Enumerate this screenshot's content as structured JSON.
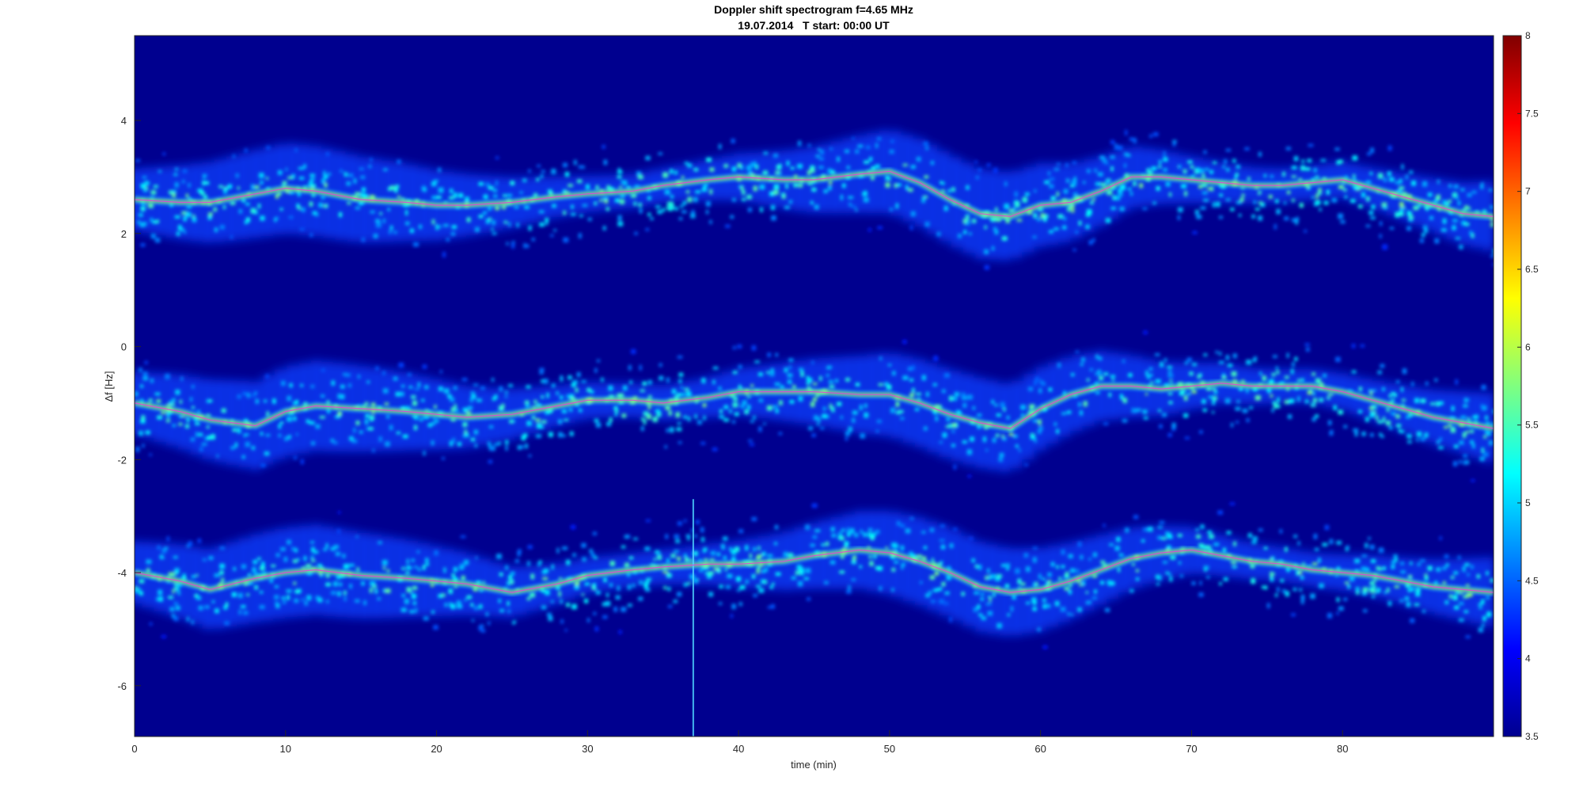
{
  "chart_data": {
    "type": "heatmap",
    "title": "Doppler shift spectrogram f=4.65 MHz",
    "subtitle": "19.07.2014   T start: 00:00 UT",
    "xlabel": "time (min)",
    "ylabel": "Δf [Hz]",
    "xlim": [
      0,
      90
    ],
    "ylim": [
      -6.9,
      5.5
    ],
    "x_ticks": [
      "0",
      "10",
      "20",
      "30",
      "40",
      "50",
      "60",
      "70",
      "80"
    ],
    "y_ticks": [
      "4",
      "2",
      "0",
      "-2",
      "-4",
      "-6"
    ],
    "colorbar": {
      "colormap": "jet",
      "clim": [
        3.5,
        8
      ],
      "ticks": [
        "8",
        "7.5",
        "7",
        "6.5",
        "6",
        "5.5",
        "5",
        "4.5",
        "4",
        "3.5"
      ]
    },
    "background_color": "#00008f",
    "traces": [
      {
        "band": "upper",
        "x": [
          0,
          3,
          5,
          8,
          10,
          12,
          15,
          18,
          20,
          22,
          25,
          28,
          30,
          33,
          35,
          38,
          40,
          43,
          45,
          48,
          50,
          52,
          54,
          56,
          58,
          60,
          62,
          64,
          66,
          68,
          70,
          72,
          74,
          76,
          78,
          80,
          82,
          84,
          86,
          88,
          90
        ],
        "y": [
          2.6,
          2.55,
          2.55,
          2.7,
          2.8,
          2.75,
          2.6,
          2.55,
          2.5,
          2.5,
          2.55,
          2.65,
          2.7,
          2.75,
          2.85,
          2.95,
          3.0,
          2.95,
          2.95,
          3.05,
          3.1,
          2.9,
          2.6,
          2.35,
          2.3,
          2.5,
          2.55,
          2.75,
          3.0,
          3.0,
          2.95,
          2.9,
          2.85,
          2.85,
          2.9,
          2.95,
          2.8,
          2.65,
          2.5,
          2.35,
          2.3
        ]
      },
      {
        "band": "middle",
        "x": [
          0,
          3,
          5,
          8,
          10,
          12,
          15,
          18,
          20,
          22,
          25,
          28,
          30,
          33,
          35,
          38,
          40,
          43,
          45,
          48,
          50,
          52,
          54,
          56,
          58,
          60,
          62,
          64,
          66,
          68,
          70,
          72,
          74,
          76,
          78,
          80,
          82,
          84,
          86,
          88,
          90
        ],
        "y": [
          -1.0,
          -1.15,
          -1.3,
          -1.4,
          -1.15,
          -1.05,
          -1.1,
          -1.15,
          -1.2,
          -1.25,
          -1.2,
          -1.05,
          -0.95,
          -0.95,
          -1.0,
          -0.9,
          -0.8,
          -0.8,
          -0.8,
          -0.85,
          -0.85,
          -1.0,
          -1.2,
          -1.35,
          -1.45,
          -1.1,
          -0.85,
          -0.7,
          -0.7,
          -0.75,
          -0.7,
          -0.65,
          -0.7,
          -0.7,
          -0.7,
          -0.8,
          -0.95,
          -1.1,
          -1.25,
          -1.35,
          -1.45
        ]
      },
      {
        "band": "lower",
        "x": [
          0,
          3,
          5,
          8,
          10,
          12,
          15,
          18,
          20,
          22,
          25,
          28,
          30,
          33,
          35,
          38,
          40,
          43,
          45,
          48,
          50,
          52,
          54,
          56,
          58,
          60,
          62,
          64,
          66,
          68,
          70,
          72,
          74,
          76,
          78,
          80,
          82,
          84,
          86,
          88,
          90
        ],
        "y": [
          -4.0,
          -4.15,
          -4.3,
          -4.1,
          -4.0,
          -3.95,
          -4.05,
          -4.1,
          -4.15,
          -4.2,
          -4.35,
          -4.2,
          -4.05,
          -3.95,
          -3.9,
          -3.85,
          -3.85,
          -3.8,
          -3.7,
          -3.6,
          -3.65,
          -3.8,
          -4.0,
          -4.25,
          -4.35,
          -4.3,
          -4.15,
          -3.95,
          -3.75,
          -3.65,
          -3.6,
          -3.7,
          -3.8,
          -3.85,
          -3.95,
          -4.0,
          -4.05,
          -4.15,
          -4.25,
          -4.3,
          -4.35
        ]
      }
    ],
    "spike": {
      "x": 37,
      "y_range": [
        -6.9,
        -2.7
      ]
    }
  }
}
